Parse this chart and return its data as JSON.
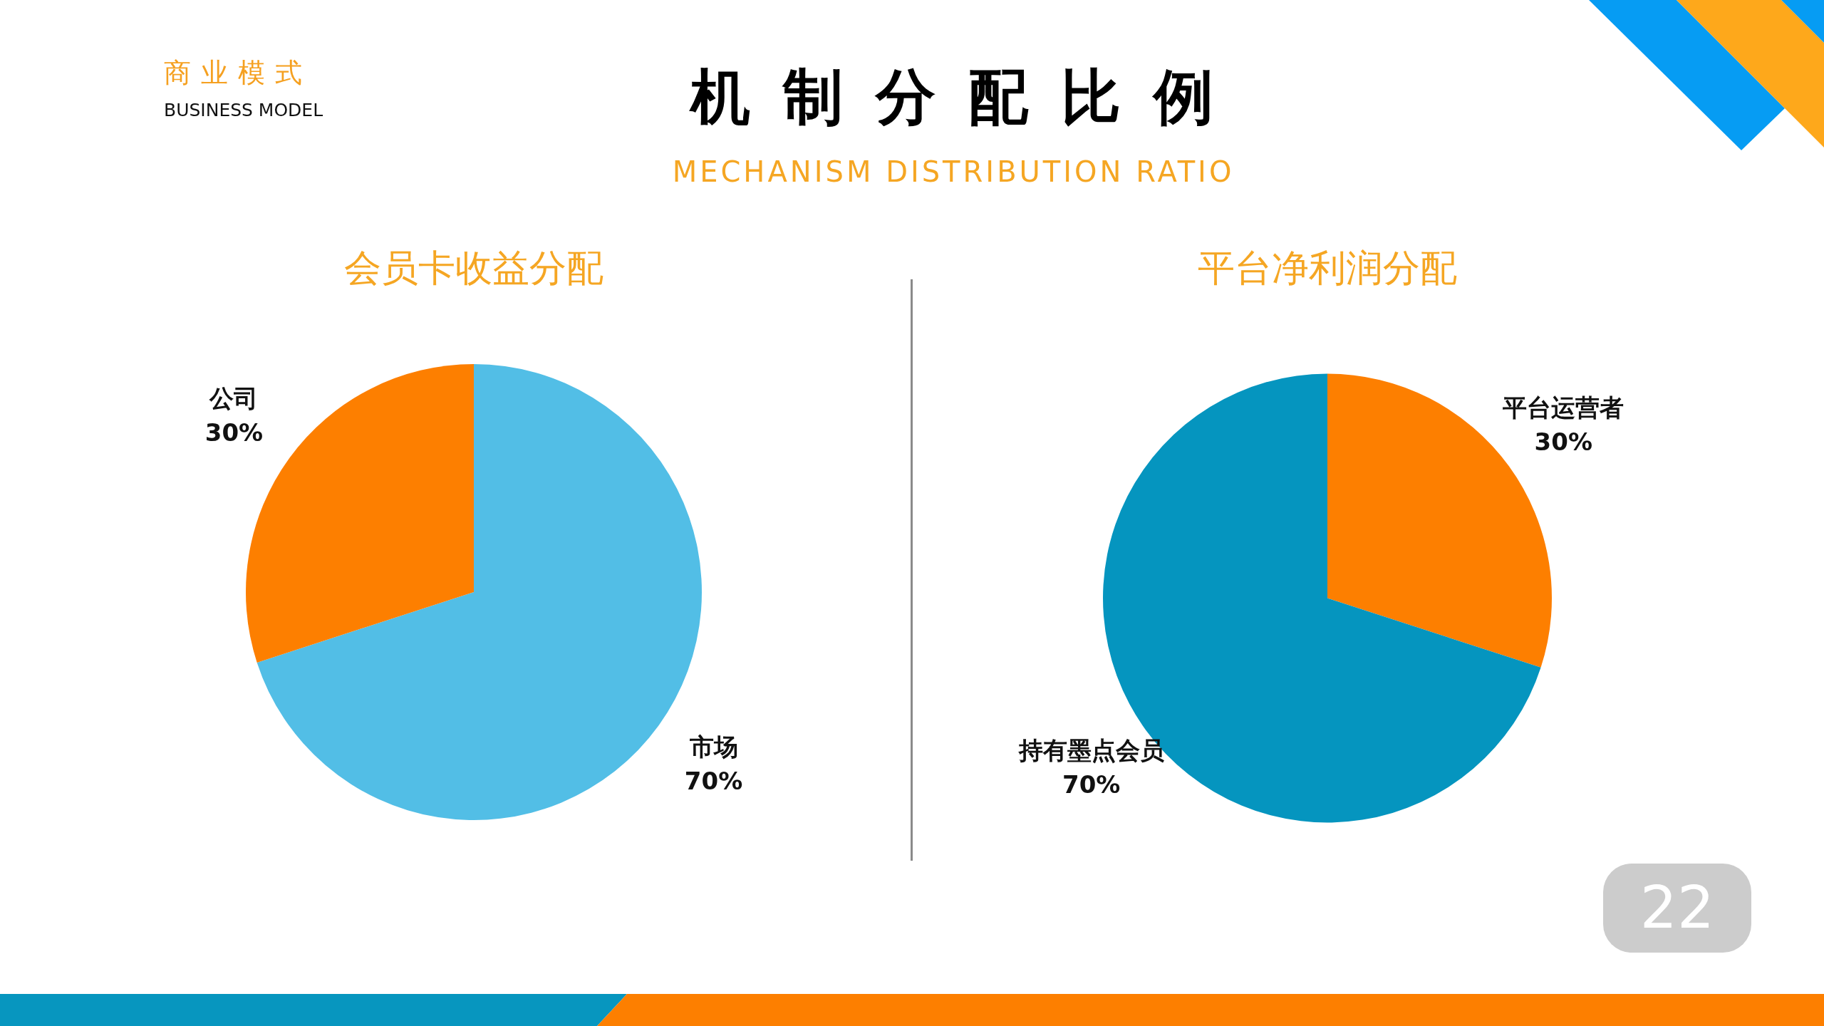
{
  "chart_data": [
    {
      "type": "other",
      "title": "机制分配比例",
      "subtitle": "MECHANISM DISTRIBUTION RATIO",
      "annotations": [
        "商业模式",
        "BUSINESS MODEL",
        "22"
      ]
    },
    {
      "type": "pie",
      "title": "会员卡收益分配",
      "categories": [
        "市场",
        "公司"
      ],
      "values": [
        70,
        30
      ],
      "colors": [
        "#52bee6",
        "#fd7f00"
      ],
      "value_labels": [
        "70%",
        "30%"
      ]
    },
    {
      "type": "pie",
      "title": "平台净利润分配",
      "categories": [
        "平台运营者",
        "持有墨点会员"
      ],
      "values": [
        30,
        70
      ],
      "colors": [
        "#fd7f00",
        "#0595bf"
      ],
      "value_labels": [
        "30%",
        "70%"
      ]
    }
  ]
}
